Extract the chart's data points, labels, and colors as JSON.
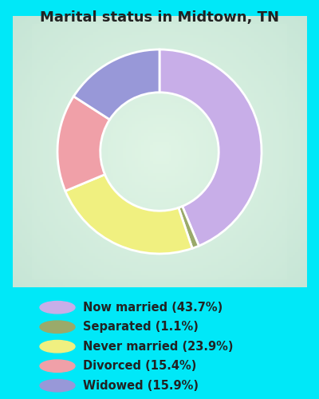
{
  "title": "Marital status in Midtown, TN",
  "slices": [
    {
      "label": "Now married (43.7%)",
      "value": 43.7,
      "color": "#c8aee8"
    },
    {
      "label": "Separated (1.1%)",
      "value": 1.1,
      "color": "#9aaa6a"
    },
    {
      "label": "Never married (23.9%)",
      "value": 23.9,
      "color": "#f0f080"
    },
    {
      "label": "Divorced (15.4%)",
      "value": 15.4,
      "color": "#f0a0a8"
    },
    {
      "label": "Widowed (15.9%)",
      "value": 15.9,
      "color": "#9898d8"
    }
  ],
  "bg_cyan": "#00e8f8",
  "chart_bg_colors": [
    "#c8e8d0",
    "#dff5e8",
    "#e8f8f0"
  ],
  "title_fontsize": 13,
  "legend_fontsize": 10.5,
  "title_color": "#222222",
  "legend_text_color": "#222222",
  "startangle": 90,
  "donut_width": 0.42
}
